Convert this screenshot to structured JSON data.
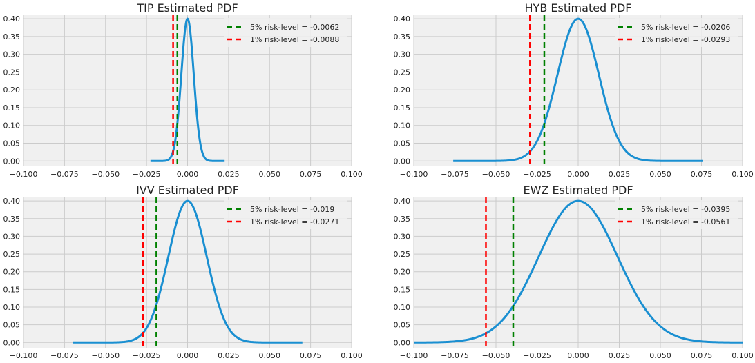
{
  "figure": {
    "background": "#ffffff",
    "panel_color": "#f0f0f0",
    "grid_color": "#cbcbcb",
    "pdf_color": "#1a8fd1",
    "var5_color": "#008000",
    "var1_color": "#ff0000"
  },
  "chart_data": [
    {
      "type": "line",
      "title": "TIP Estimated PDF",
      "xlim": [
        -0.1,
        0.1
      ],
      "ylim": [
        -0.015,
        0.41
      ],
      "xticks": [
        -0.1,
        -0.075,
        -0.05,
        -0.025,
        0.0,
        0.025,
        0.05,
        0.075,
        0.1
      ],
      "xtick_labels": [
        "−0.100",
        "−0.075",
        "−0.050",
        "−0.025",
        "0.000",
        "0.025",
        "0.050",
        "0.075",
        "0.100"
      ],
      "yticks": [
        0.0,
        0.05,
        0.1,
        0.15,
        0.2,
        0.25,
        0.3,
        0.35,
        0.4
      ],
      "ytick_labels": [
        "0.00",
        "0.05",
        "0.10",
        "0.15",
        "0.20",
        "0.25",
        "0.30",
        "0.35",
        "0.40"
      ],
      "grid": true,
      "legend_position": "top-right",
      "pdf": {
        "mean": 0.0,
        "sigma": 0.0038,
        "x_range": [
          -0.0226,
          0.0226
        ],
        "peak": 0.4
      },
      "lines": [
        {
          "label": "5% risk-level = -0.0062",
          "x": -0.0062,
          "style": "dashed",
          "color": "#008000"
        },
        {
          "label": "1% risk-level = -0.0088",
          "x": -0.0088,
          "style": "dashed",
          "color": "#ff0000"
        }
      ]
    },
    {
      "type": "line",
      "title": "HYB Estimated PDF",
      "xlim": [
        -0.1,
        0.1
      ],
      "ylim": [
        -0.015,
        0.41
      ],
      "xticks": [
        -0.1,
        -0.075,
        -0.05,
        -0.025,
        0.0,
        0.025,
        0.05,
        0.075,
        0.1
      ],
      "xtick_labels": [
        "−0.100",
        "−0.075",
        "−0.050",
        "−0.025",
        "0.000",
        "0.025",
        "0.050",
        "0.075",
        "0.100"
      ],
      "yticks": [
        0.0,
        0.05,
        0.1,
        0.15,
        0.2,
        0.25,
        0.3,
        0.35,
        0.4
      ],
      "ytick_labels": [
        "0.00",
        "0.05",
        "0.10",
        "0.15",
        "0.20",
        "0.25",
        "0.30",
        "0.35",
        "0.40"
      ],
      "grid": true,
      "legend_position": "top-right",
      "pdf": {
        "mean": 0.0,
        "sigma": 0.0126,
        "x_range": [
          -0.076,
          0.076
        ],
        "peak": 0.4
      },
      "lines": [
        {
          "label": "5% risk-level = -0.0206",
          "x": -0.0206,
          "style": "dashed",
          "color": "#008000"
        },
        {
          "label": "1% risk-level = -0.0293",
          "x": -0.0293,
          "style": "dashed",
          "color": "#ff0000"
        }
      ]
    },
    {
      "type": "line",
      "title": "IVV Estimated PDF",
      "xlim": [
        -0.1,
        0.1
      ],
      "ylim": [
        -0.015,
        0.41
      ],
      "xticks": [
        -0.1,
        -0.075,
        -0.05,
        -0.025,
        0.0,
        0.025,
        0.05,
        0.075,
        0.1
      ],
      "xtick_labels": [
        "−0.100",
        "−0.075",
        "−0.050",
        "−0.025",
        "0.000",
        "0.025",
        "0.050",
        "0.075",
        "0.100"
      ],
      "yticks": [
        0.0,
        0.05,
        0.1,
        0.15,
        0.2,
        0.25,
        0.3,
        0.35,
        0.4
      ],
      "ytick_labels": [
        "0.00",
        "0.05",
        "0.10",
        "0.15",
        "0.20",
        "0.25",
        "0.30",
        "0.35",
        "0.40"
      ],
      "grid": true,
      "legend_position": "top-right",
      "pdf": {
        "mean": 0.0,
        "sigma": 0.0117,
        "x_range": [
          -0.07,
          0.07
        ],
        "peak": 0.4
      },
      "lines": [
        {
          "label": "5% risk-level = -0.019",
          "x": -0.019,
          "style": "dashed",
          "color": "#008000"
        },
        {
          "label": "1% risk-level = -0.0271",
          "x": -0.0271,
          "style": "dashed",
          "color": "#ff0000"
        }
      ]
    },
    {
      "type": "line",
      "title": "EWZ Estimated PDF",
      "xlim": [
        -0.1,
        0.1
      ],
      "ylim": [
        -0.015,
        0.41
      ],
      "xticks": [
        -0.1,
        -0.075,
        -0.05,
        -0.025,
        0.0,
        0.025,
        0.05,
        0.075,
        0.1
      ],
      "xtick_labels": [
        "−0.100",
        "−0.075",
        "−0.050",
        "−0.025",
        "0.000",
        "0.025",
        "0.050",
        "0.075",
        "0.100"
      ],
      "yticks": [
        0.0,
        0.05,
        0.1,
        0.15,
        0.2,
        0.25,
        0.3,
        0.35,
        0.4
      ],
      "ytick_labels": [
        "0.00",
        "0.05",
        "0.10",
        "0.15",
        "0.20",
        "0.25",
        "0.30",
        "0.35",
        "0.40"
      ],
      "grid": true,
      "legend_position": "top-right",
      "pdf": {
        "mean": 0.0,
        "sigma": 0.024,
        "x_range": [
          -0.1,
          0.1
        ],
        "peak": 0.4
      },
      "lines": [
        {
          "label": "5% risk-level = -0.0395",
          "x": -0.0395,
          "style": "dashed",
          "color": "#008000"
        },
        {
          "label": "1% risk-level = -0.0561",
          "x": -0.0561,
          "style": "dashed",
          "color": "#ff0000"
        }
      ]
    }
  ]
}
